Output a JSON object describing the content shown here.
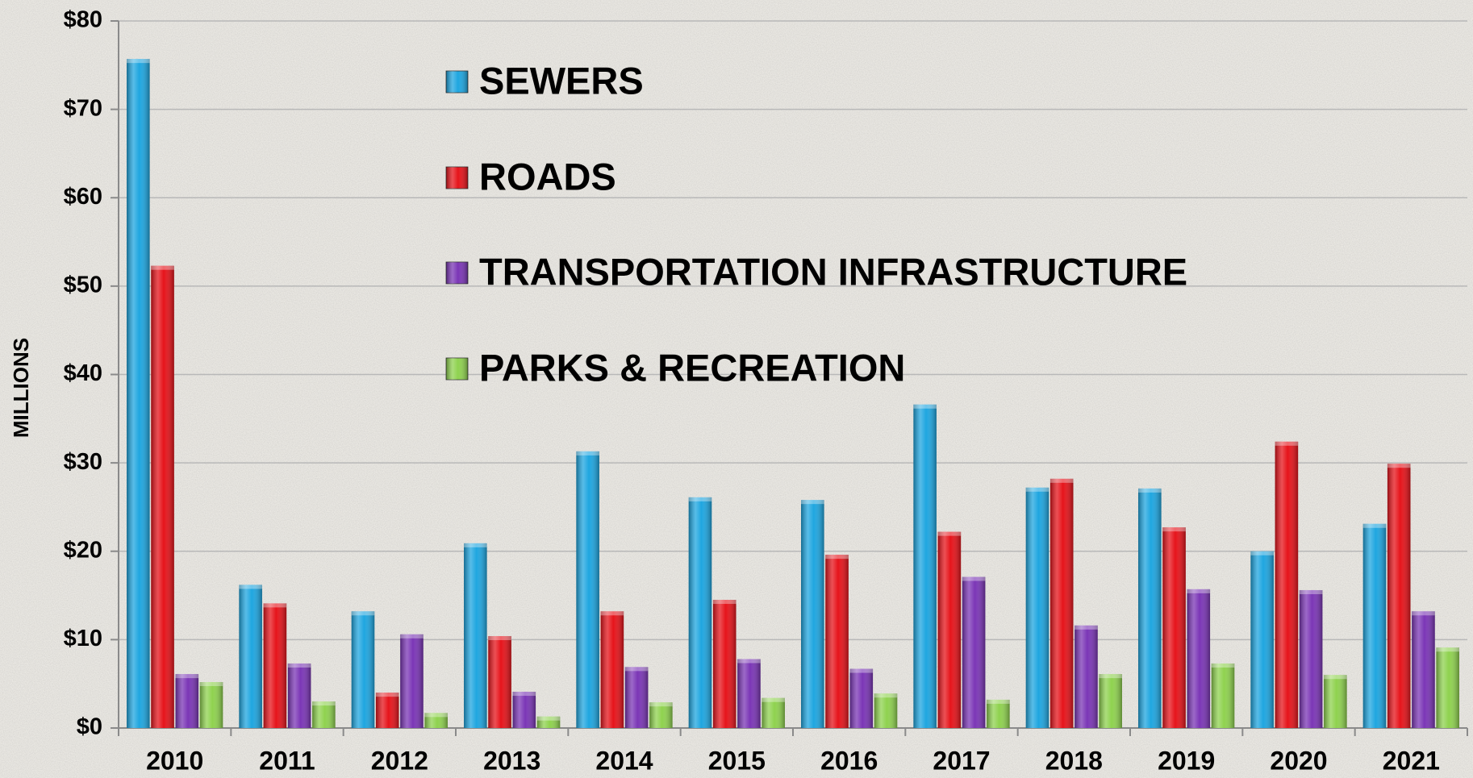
{
  "chart_data": {
    "type": "bar",
    "y_label": "MILLIONS",
    "categories": [
      "2010",
      "2011",
      "2012",
      "2013",
      "2014",
      "2015",
      "2016",
      "2017",
      "2018",
      "2019",
      "2020",
      "2021"
    ],
    "series": [
      {
        "name": "SEWERS",
        "color": "#1fa6e0",
        "values": [
          75.7,
          16.2,
          13.2,
          20.9,
          31.3,
          26.1,
          25.8,
          36.6,
          27.2,
          27.1,
          20.0,
          23.1
        ]
      },
      {
        "name": "ROADS",
        "color": "#e6141b",
        "values": [
          52.3,
          14.1,
          4.0,
          10.4,
          13.2,
          14.5,
          19.6,
          22.2,
          28.2,
          22.7,
          32.4,
          29.9
        ]
      },
      {
        "name": "TRANSPORTATION INFRASTRUCTURE",
        "color": "#7b36b6",
        "values": [
          6.1,
          7.3,
          10.6,
          4.1,
          6.9,
          7.8,
          6.7,
          17.1,
          11.6,
          15.7,
          15.6,
          13.2
        ]
      },
      {
        "name": "PARKS & RECREATION",
        "color": "#8fd24f",
        "values": [
          5.2,
          3.0,
          1.7,
          1.3,
          2.9,
          3.4,
          3.9,
          3.2,
          6.1,
          7.3,
          6.0,
          9.1
        ]
      }
    ],
    "ylim": [
      0,
      80
    ],
    "yticks": [
      {
        "value": 0,
        "label": "$0"
      },
      {
        "value": 10,
        "label": "$10"
      },
      {
        "value": 20,
        "label": "$20"
      },
      {
        "value": 30,
        "label": "$30"
      },
      {
        "value": 40,
        "label": "$40"
      },
      {
        "value": 50,
        "label": "$50"
      },
      {
        "value": 60,
        "label": "$60"
      },
      {
        "value": 70,
        "label": "$70"
      },
      {
        "value": 80,
        "label": "$80"
      }
    ],
    "grid": true,
    "legend": "top"
  }
}
